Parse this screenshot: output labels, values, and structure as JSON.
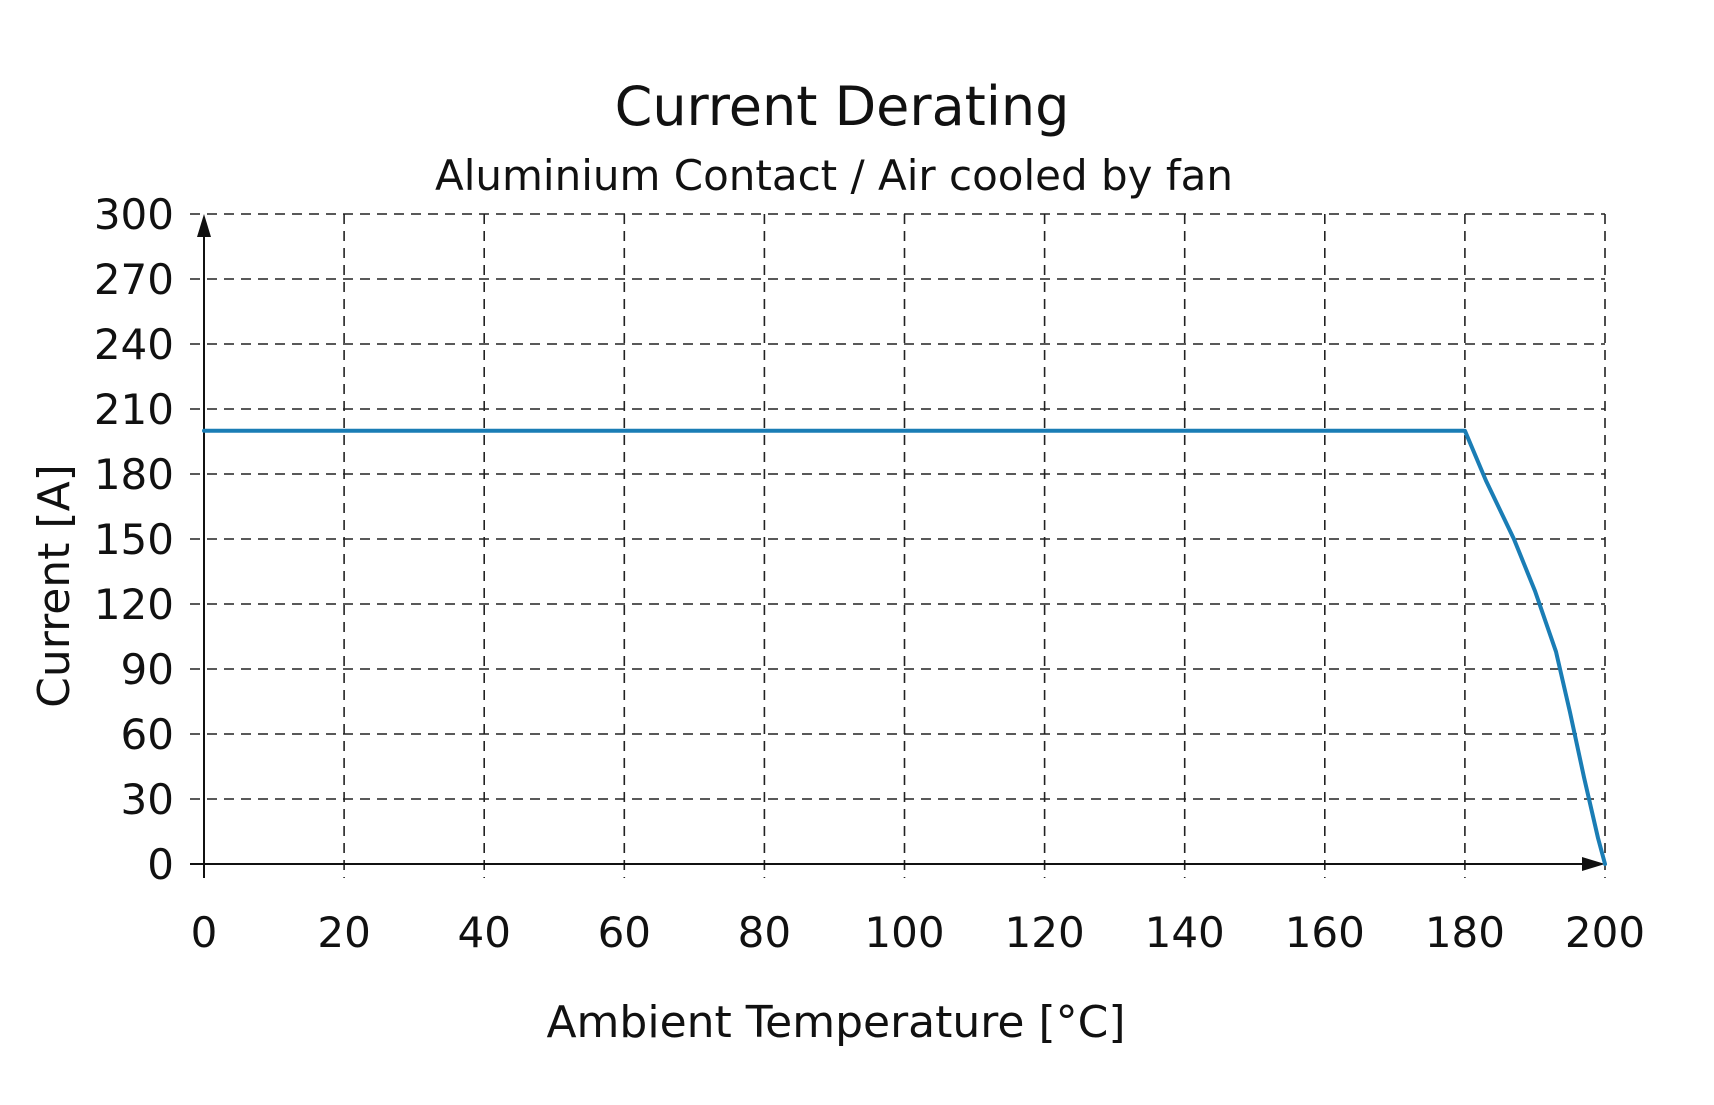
{
  "chart_data": {
    "type": "line",
    "title": "Current Derating",
    "subtitle": "Aluminium Contact / Air cooled by fan",
    "xlabel": "Ambient Temperature [°C]",
    "ylabel": "Current [A]",
    "xlim": [
      0,
      200
    ],
    "ylim": [
      0,
      300
    ],
    "x_ticks": [
      0,
      20,
      40,
      60,
      80,
      100,
      120,
      140,
      160,
      180,
      200
    ],
    "y_ticks": [
      0,
      30,
      60,
      90,
      120,
      150,
      180,
      210,
      240,
      270,
      300
    ],
    "grid": true,
    "grid_style": "dashed",
    "series": [
      {
        "color": "#1a7db5",
        "x": [
          0,
          180,
          183,
          187,
          190,
          193,
          195,
          197,
          199,
          200
        ],
        "y": [
          200,
          200,
          177,
          150,
          126,
          98,
          70,
          40,
          12,
          0
        ]
      }
    ]
  }
}
